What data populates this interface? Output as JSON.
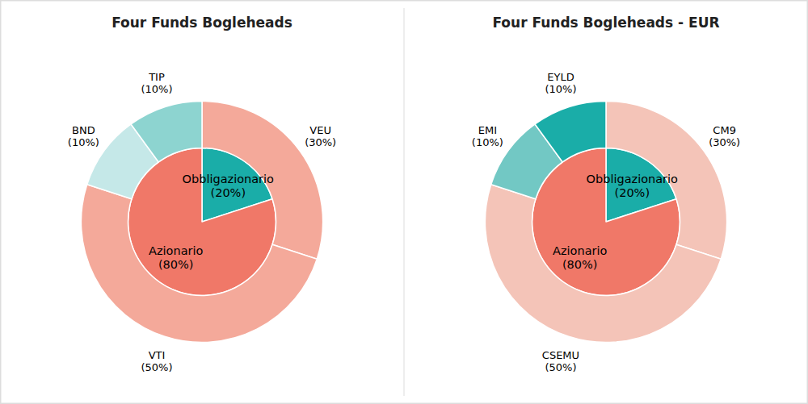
{
  "chart_data": [
    {
      "type": "donut",
      "title": "Four Funds Bogleheads",
      "series": [
        {
          "categories": [
            "Obbligazionario\n(20%)",
            "Azionario\n(80%)"
          ],
          "values": [
            20,
            80
          ],
          "colors": [
            "#1aada8",
            "#f07868"
          ]
        },
        {
          "categories": [
            "VEU\n(30%)",
            "VTI\n(50%)",
            "BND\n(10%)",
            "TIP\n(10%)"
          ],
          "values": [
            30,
            50,
            10,
            10
          ],
          "colors": [
            "#f4a99a",
            "#f4a99a",
            "#c5e8e8",
            "#8dd4d0"
          ]
        }
      ]
    },
    {
      "type": "donut",
      "title": "Four Funds Bogleheads - EUR",
      "series": [
        {
          "categories": [
            "Obbligazionario\n(20%)",
            "Azionario\n(80%)"
          ],
          "values": [
            20,
            80
          ],
          "colors": [
            "#1aada8",
            "#f07868"
          ]
        },
        {
          "categories": [
            "CM9\n(30%)",
            "CSEMU\n(50%)",
            "EMI\n(10%)",
            "EYLD\n(10%)"
          ],
          "values": [
            30,
            50,
            10,
            10
          ],
          "colors": [
            "#f4c4b8",
            "#f4c4b8",
            "#72c8c4",
            "#1aada8"
          ]
        }
      ]
    }
  ]
}
